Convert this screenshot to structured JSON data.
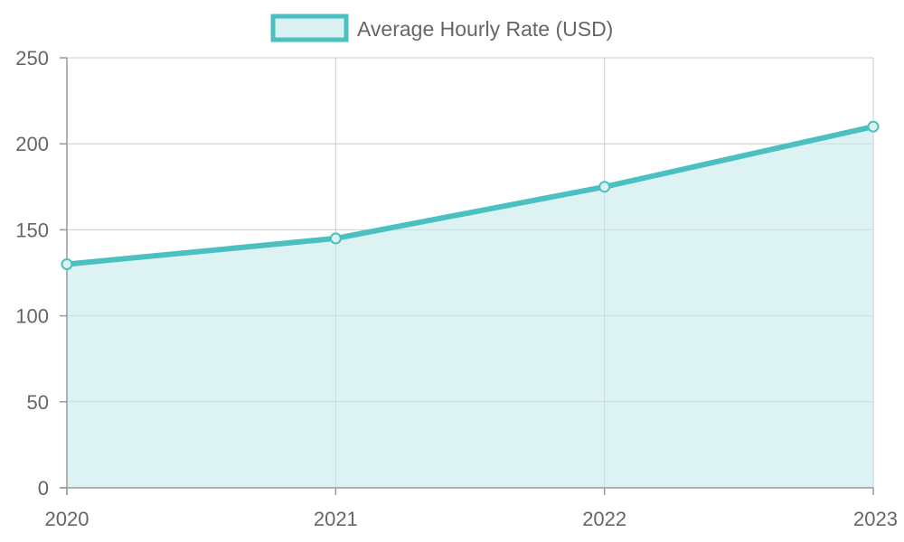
{
  "chart_data": {
    "type": "area",
    "categories": [
      "2020",
      "2021",
      "2022",
      "2023"
    ],
    "series": [
      {
        "name": "Average Hourly Rate (USD)",
        "values": [
          130,
          145,
          175,
          210
        ]
      }
    ],
    "yticks": [
      "0",
      "50",
      "100",
      "150",
      "200",
      "250"
    ],
    "ylim": [
      0,
      250
    ],
    "grid": true,
    "legend": "top-center",
    "colors": {
      "line": "#4bc0c0",
      "fill": "#daf1f2",
      "grid": "#e0e0e0",
      "axis": "#999999",
      "text": "#666666"
    }
  }
}
